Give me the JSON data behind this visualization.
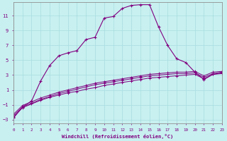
{
  "xlabel": "Windchill (Refroidissement éolien,°C)",
  "background_color": "#c8f0f0",
  "line_color": "#800080",
  "grid_color": "#a8dce0",
  "xlim": [
    0,
    23
  ],
  "ylim": [
    -3.5,
    12.8
  ],
  "xticks": [
    0,
    1,
    2,
    3,
    4,
    5,
    6,
    7,
    8,
    9,
    10,
    11,
    12,
    13,
    14,
    15,
    16,
    17,
    18,
    19,
    20,
    21,
    22,
    23
  ],
  "yticks": [
    -3,
    -1,
    1,
    3,
    5,
    7,
    9,
    11
  ],
  "main_x": [
    0,
    1,
    2,
    3,
    4,
    5,
    6,
    7,
    8,
    9,
    10,
    11,
    12,
    13,
    14,
    15,
    16,
    17,
    18,
    19,
    20,
    21,
    22,
    23
  ],
  "main_y": [
    -2.8,
    -1.3,
    -0.5,
    2.2,
    4.3,
    5.6,
    6.0,
    6.3,
    7.8,
    8.1,
    10.7,
    10.9,
    12.0,
    12.4,
    12.5,
    12.5,
    9.5,
    7.0,
    5.2,
    4.7,
    3.4,
    2.4,
    3.1,
    3.3
  ],
  "line2_x": [
    0,
    1,
    2,
    3,
    4,
    5,
    6,
    7,
    8,
    9,
    10,
    11,
    12,
    13,
    14,
    15,
    16,
    17,
    18,
    19,
    20,
    21,
    22,
    23
  ],
  "line2_y": [
    -2.7,
    -1.4,
    -0.9,
    -0.4,
    0.0,
    0.3,
    0.6,
    0.8,
    1.1,
    1.3,
    1.6,
    1.8,
    2.0,
    2.2,
    2.4,
    2.6,
    2.7,
    2.8,
    2.9,
    3.0,
    3.1,
    2.5,
    3.1,
    3.2
  ],
  "line3_x": [
    0,
    1,
    2,
    3,
    4,
    5,
    6,
    7,
    8,
    9,
    10,
    11,
    12,
    13,
    14,
    15,
    16,
    17,
    18,
    19,
    20,
    21,
    22,
    23
  ],
  "line3_y": [
    -2.5,
    -1.3,
    -0.8,
    -0.3,
    0.1,
    0.5,
    0.8,
    1.1,
    1.4,
    1.7,
    1.9,
    2.1,
    2.3,
    2.5,
    2.7,
    2.9,
    3.0,
    3.1,
    3.2,
    3.2,
    3.3,
    2.7,
    3.2,
    3.4
  ],
  "line4_x": [
    0,
    1,
    2,
    3,
    4,
    5,
    6,
    7,
    8,
    9,
    10,
    11,
    12,
    13,
    14,
    15,
    16,
    17,
    18,
    19,
    20,
    21,
    22,
    23
  ],
  "line4_y": [
    -2.3,
    -1.1,
    -0.6,
    -0.1,
    0.3,
    0.7,
    1.0,
    1.3,
    1.6,
    1.9,
    2.1,
    2.3,
    2.5,
    2.7,
    2.9,
    3.1,
    3.2,
    3.3,
    3.4,
    3.4,
    3.5,
    2.9,
    3.4,
    3.5
  ]
}
